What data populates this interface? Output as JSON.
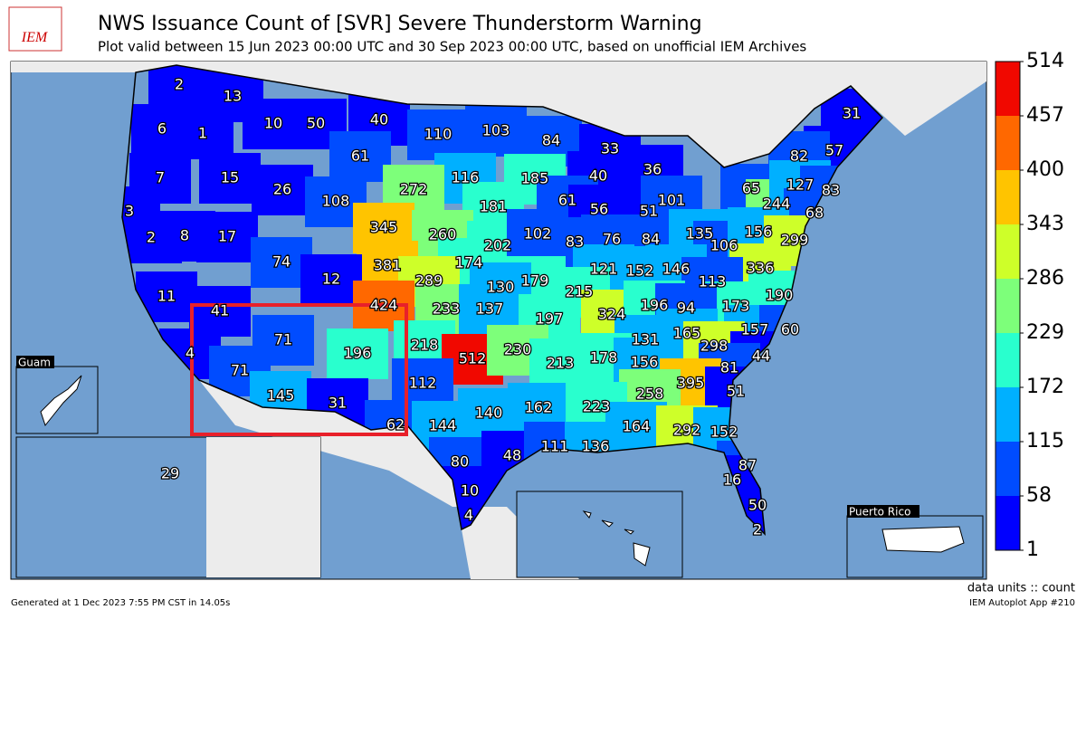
{
  "header": {
    "logo_text": "IEM",
    "title": "NWS Issuance Count of [SVR] Severe Thunderstorm Warning",
    "subtitle": "Plot valid between 15 Jun 2023 00:00 UTC and 30 Sep 2023 00:00 UTC, based on unofficial IEM Archives"
  },
  "map": {
    "values": [
      2,
      13,
      10,
      50,
      40,
      110,
      103,
      84,
      33,
      6,
      1,
      61,
      116,
      185,
      40,
      36,
      31,
      57,
      82,
      7,
      15,
      26,
      108,
      272,
      181,
      61,
      56,
      51,
      101,
      65,
      244,
      127,
      83,
      68,
      3,
      2,
      8,
      17,
      345,
      260,
      202,
      102,
      83,
      76,
      84,
      135,
      106,
      156,
      299,
      74,
      381,
      174,
      179,
      121,
      152,
      146,
      336,
      11,
      12,
      289,
      130,
      215,
      113,
      173,
      190,
      41,
      424,
      233,
      137,
      197,
      324,
      196,
      94,
      71,
      196,
      218,
      512,
      230,
      131,
      165,
      157,
      60,
      4,
      71,
      213,
      178,
      156,
      298,
      44,
      81,
      395,
      112,
      258,
      51,
      145,
      31,
      140,
      162,
      223,
      62,
      144,
      164,
      292,
      152,
      80,
      48,
      111,
      136,
      87,
      16,
      10,
      50,
      4,
      2,
      29
    ],
    "insets": [
      "Guam",
      "Puerto Rico"
    ]
  },
  "colorbar": {
    "range": [
      1,
      514
    ],
    "ticks": [
      1,
      58,
      115,
      172,
      229,
      286,
      343,
      400,
      457,
      514
    ],
    "colors": [
      "#0000ff",
      "#004cff",
      "#00b0ff",
      "#29ffce",
      "#7dff7a",
      "#ceff29",
      "#ffc400",
      "#ff6800",
      "#f10800"
    ],
    "units": "data units :: count"
  },
  "footer": {
    "generated": "Generated at 1 Dec 2023 7:55 PM CST in 14.05s",
    "app": "IEM Autoplot App #210"
  }
}
